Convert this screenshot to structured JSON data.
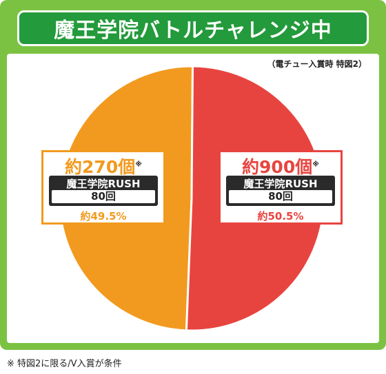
{
  "title": "魔王学院バトルチャレンジ中",
  "condition_note": "（電チュー入賞時 特図2）",
  "footnote": "※ 特図2に限る/V入賞が条件",
  "colors": {
    "left": "#f29a1f",
    "right": "#e8443f",
    "frame": "#7bc242",
    "title_bg": "#239a3b"
  },
  "chart_data": {
    "type": "pie",
    "title": "魔王学院バトルチャレンジ中",
    "slices": [
      {
        "label": "約270個",
        "note": "※",
        "rush": "魔王学院RUSH",
        "rush_count": "80回",
        "percent_text": "約49.5%",
        "value": 49.5,
        "color": "#f29a1f"
      },
      {
        "label": "約900個",
        "note": "※",
        "rush": "魔王学院RUSH",
        "rush_count": "80回",
        "percent_text": "約50.5%",
        "value": 50.5,
        "color": "#e8443f"
      }
    ]
  }
}
